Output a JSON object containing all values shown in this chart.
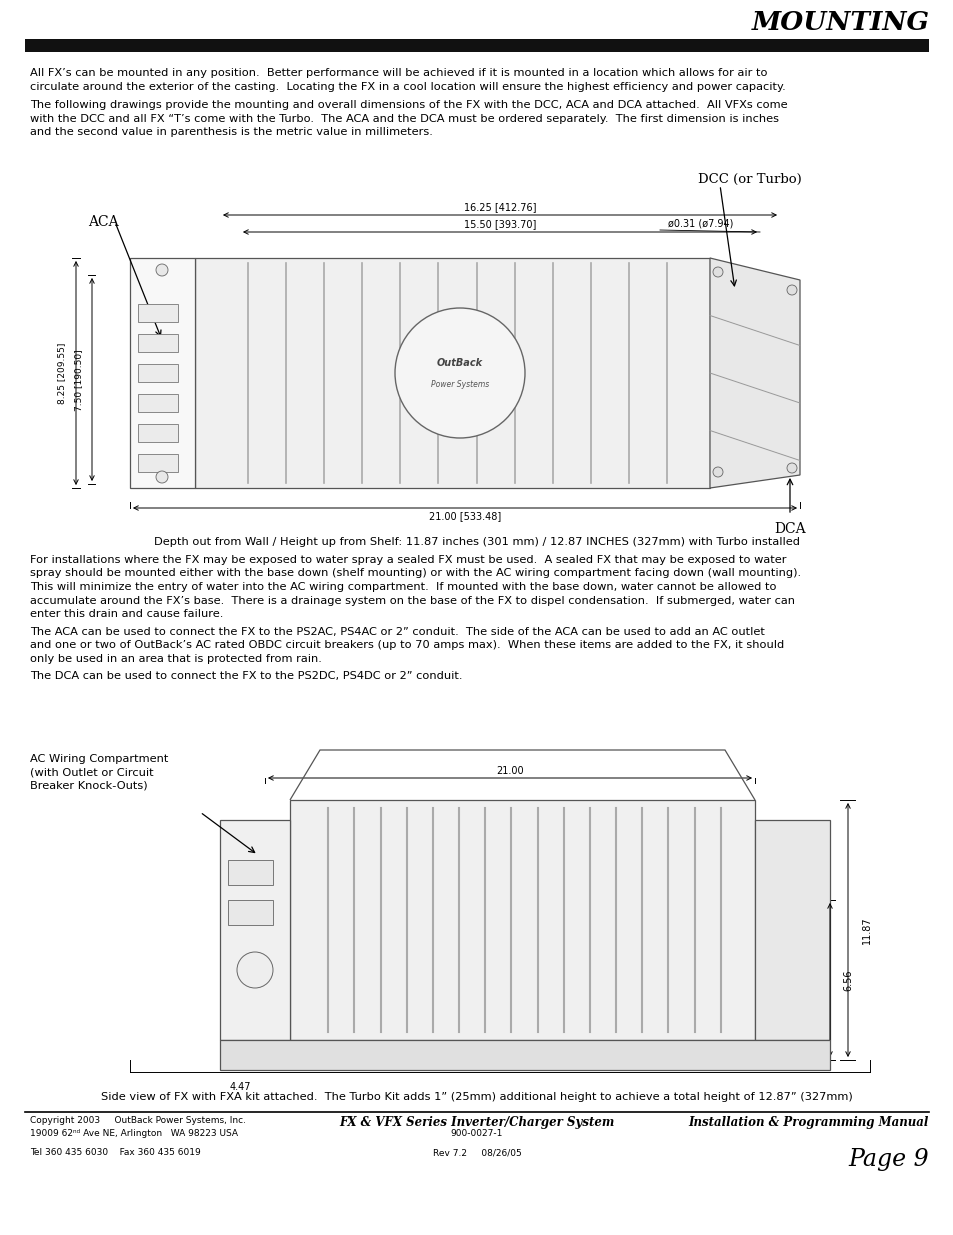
{
  "title": "MOUNTING",
  "para1_line1": "All FX’s can be mounted in any position.  Better performance will be achieved if it is mounted in a location which allows for air to",
  "para1_line2": "circulate around the exterior of the casting.  Locating the FX in a cool location will ensure the highest efficiency and power capacity.",
  "para2_line1": "The following drawings provide the mounting and overall dimensions of the FX with the DCC, ACA and DCA attached.  All VFXs come",
  "para2_line2": "with the DCC and all FX “T’s come with the Turbo.  The ACA and the DCA must be ordered separately.  The first dimension is inches",
  "para2_line3": "and the second value in parenthesis is the metric value in millimeters.",
  "depth_note": "Depth out from Wall / Height up from Shelf: 11.87 inches (301 mm) / 12.87 INCHES (327mm) with Turbo installed",
  "para3_line1": "For installations where the FX may be exposed to water spray a sealed FX must be used.  A sealed FX that may be exposed to water",
  "para3_line2": "spray should be mounted either with the base down (shelf mounting) or with the AC wiring compartment facing down (wall mounting).",
  "para3_line3": "This will minimize the entry of water into the AC wiring compartment.  If mounted with the base down, water cannot be allowed to",
  "para3_line4": "accumulate around the FX’s base.  There is a drainage system on the base of the FX to dispel condensation.  If submerged, water can",
  "para3_line5": "enter this drain and cause failure.",
  "para4_line1": "The ACA can be used to connect the FX to the PS2AC, PS4AC or 2” conduit.  The side of the ACA can be used to add an AC outlet",
  "para4_line2": "and one or two of OutBack’s AC rated OBDC circuit breakers (up to 70 amps max).  When these items are added to the FX, it should",
  "para4_line3": "only be used in an area that is protected from rain.",
  "para5": "The DCA can be used to connect the FX to the PS2DC, PS4DC or 2” conduit.",
  "side_note": "Side view of FX with FXA kit attached.  The Turbo Kit adds 1” (25mm) additional height to achieve a total height of 12.87” (327mm)",
  "footer_left1": "Copyright 2003     OutBack Power Systems, Inc.",
  "footer_left2": "19009 62ⁿᵈ Ave NE, Arlington   WA 98223 USA",
  "footer_left3": "Tel 360 435 6030    Fax 360 435 6019",
  "footer_center1": "FX & VFX Series Inverter/Charger System",
  "footer_center2": "900-0027-1",
  "footer_center3": "Rev 7.2     08/26/05",
  "footer_right1": "Installation & Programming Manual",
  "footer_right2": "Page 9",
  "bg_color": "#ffffff",
  "text_color": "#000000",
  "header_bar_color": "#111111",
  "diagram_line_color": "#555555",
  "diagram_fill_light": "#f5f5f5",
  "diagram_fill_mid": "#e0e0e0",
  "diagram_fill_dark": "#c8c8c8"
}
